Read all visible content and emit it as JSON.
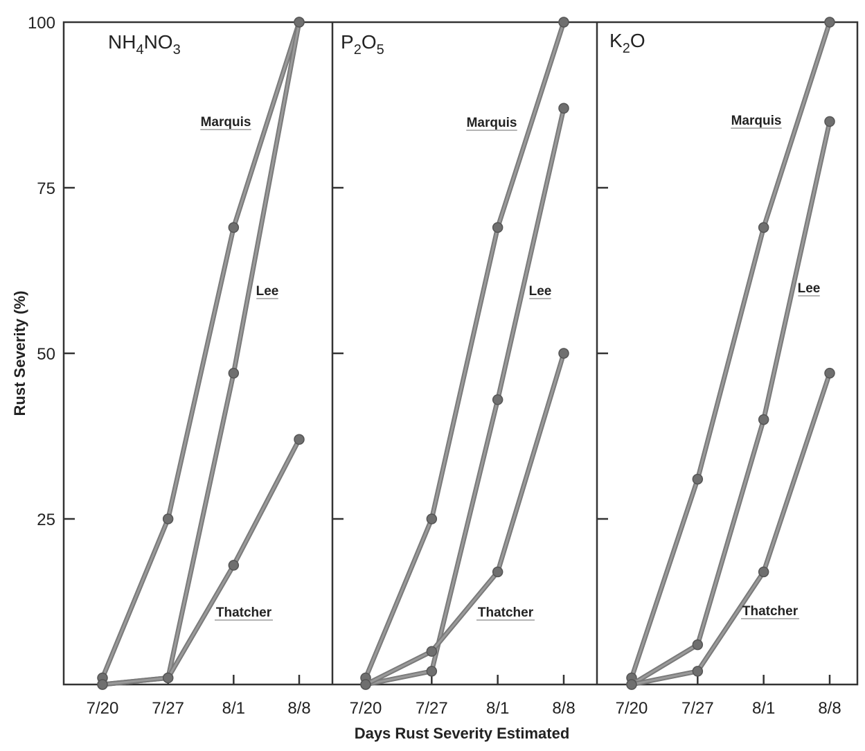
{
  "chart_data": {
    "type": "line",
    "ylabel": "Rust Severity (%)",
    "xlabel": "Days Rust Severity Estimated",
    "ylim": [
      0,
      100
    ],
    "yticks": [
      25,
      50,
      75,
      100
    ],
    "categories": [
      "7/20",
      "7/27",
      "8/1",
      "8/8"
    ],
    "panels": [
      {
        "title_main": "NH",
        "title_sub1": "4",
        "title_mid": "NO",
        "title_sub2": "3",
        "series": [
          {
            "name": "Marquis",
            "values": [
              1,
              25,
              69,
              100
            ]
          },
          {
            "name": "Lee",
            "values": [
              0,
              1,
              47,
              100
            ]
          },
          {
            "name": "Thatcher",
            "values": [
              0,
              1,
              18,
              37
            ]
          }
        ]
      },
      {
        "title_main": "P",
        "title_sub1": "2",
        "title_mid": "O",
        "title_sub2": "5",
        "series": [
          {
            "name": "Marquis",
            "values": [
              1,
              25,
              69,
              100
            ]
          },
          {
            "name": "Lee",
            "values": [
              0,
              2,
              43,
              87
            ]
          },
          {
            "name": "Thatcher",
            "values": [
              0,
              5,
              17,
              50
            ]
          }
        ]
      },
      {
        "title_main": "K",
        "title_sub1": "2",
        "title_mid": "O",
        "title_sub2": "",
        "series": [
          {
            "name": "Marquis",
            "values": [
              1,
              31,
              69,
              100
            ]
          },
          {
            "name": "Lee",
            "values": [
              0,
              6,
              40,
              85
            ]
          },
          {
            "name": "Thatcher",
            "values": [
              0,
              2,
              17,
              47
            ]
          }
        ]
      }
    ]
  }
}
